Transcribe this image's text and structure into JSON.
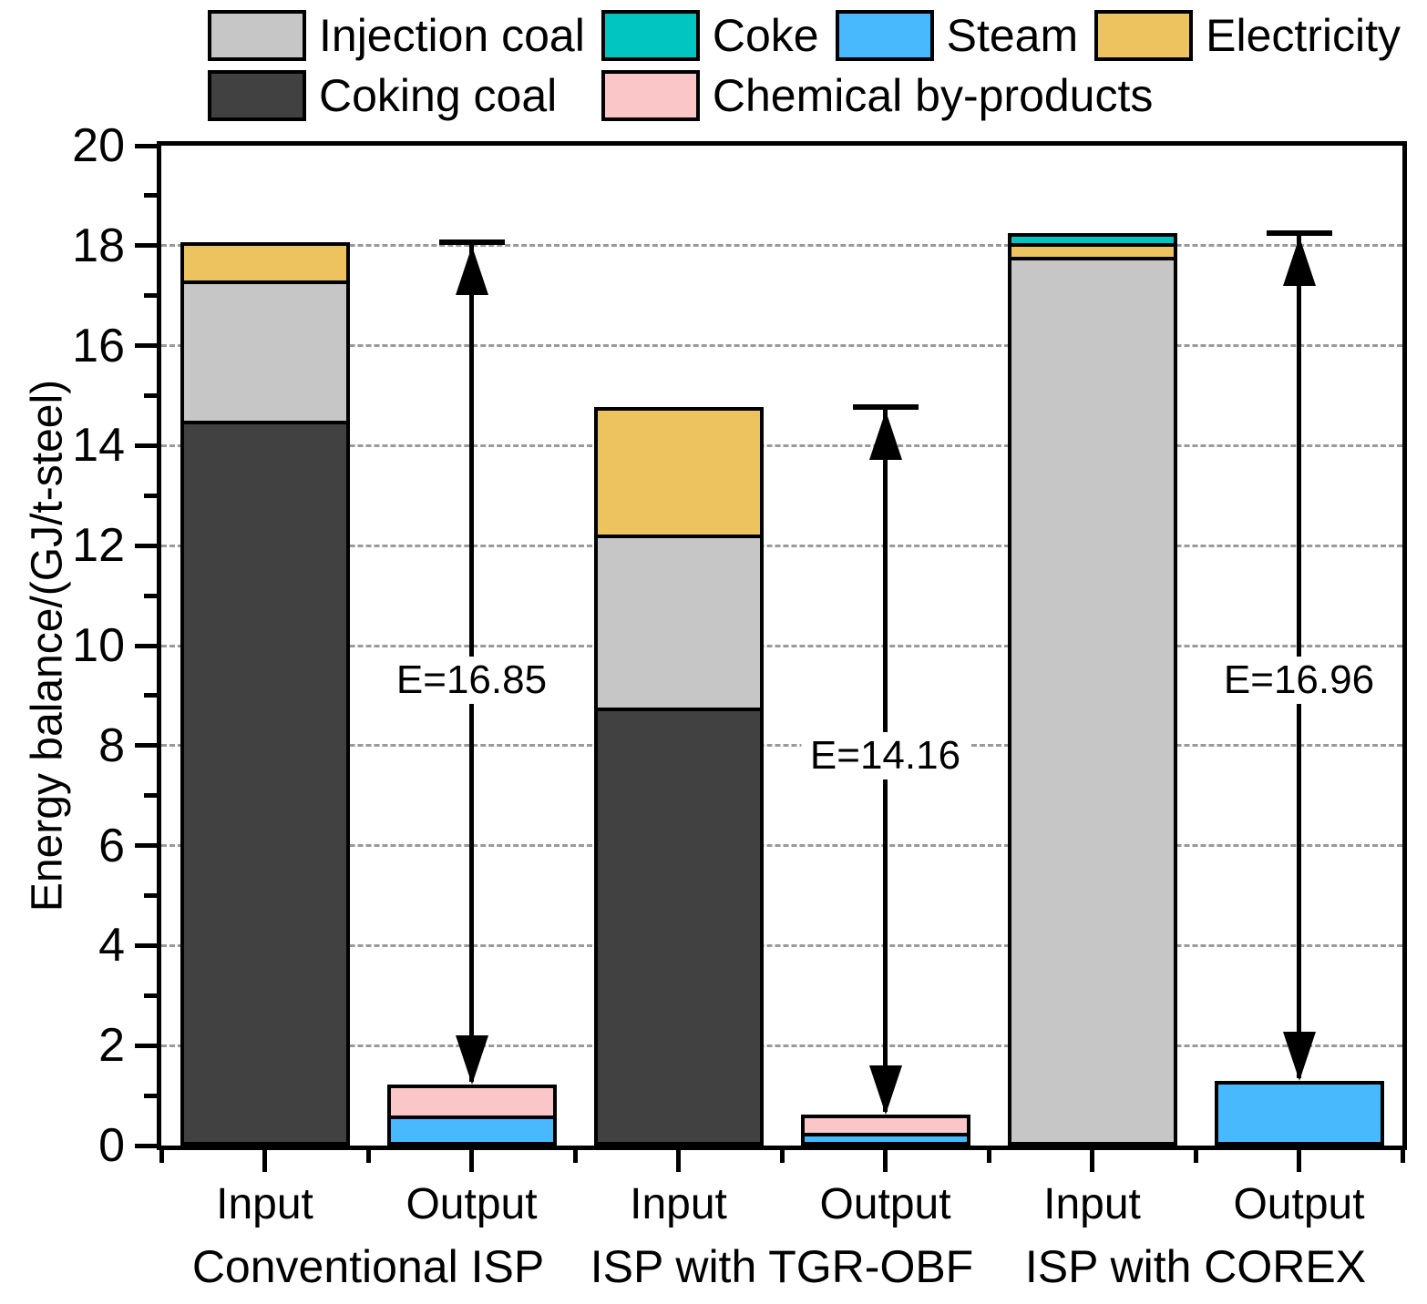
{
  "chart_data": {
    "type": "bar",
    "stacked": true,
    "title": "",
    "xlabel": "",
    "ylabel": "Energy balance/(GJ/t-steel)",
    "ylim": [
      0,
      20
    ],
    "ytick_step": 2,
    "grid": "horizontal dashed at major ticks",
    "legend_position": "top",
    "legend_rows": [
      [
        "Injection coal",
        "Coke",
        "Steam",
        "Electricity"
      ],
      [
        "Coking coal",
        "Chemical by-products"
      ]
    ],
    "series_colors": {
      "Injection coal": "#c6c6c6",
      "Coke": "#00c5c0",
      "Steam": "#47b9fc",
      "Electricity": "#ecc35f",
      "Coking coal": "#414141",
      "Chemical by-products": "#fbc6c8"
    },
    "axis_color": "#000000",
    "groups": [
      {
        "label": "Conventional ISP",
        "bars": [
          {
            "label": "Input",
            "segments": [
              {
                "series": "Coking coal",
                "value": 14.5
              },
              {
                "series": "Injection coal",
                "value": 2.8
              },
              {
                "series": "Electricity",
                "value": 0.77
              }
            ],
            "total": 18.07
          },
          {
            "label": "Output",
            "segments": [
              {
                "series": "Steam",
                "value": 0.61
              },
              {
                "series": "Chemical by-products",
                "value": 0.61
              }
            ],
            "total": 1.22
          }
        ],
        "annotation": {
          "label": "E=16.85",
          "from": 1.22,
          "to": 18.07,
          "label_y": 9.3
        }
      },
      {
        "label": "ISP with TGR-OBF",
        "bars": [
          {
            "label": "Input",
            "segments": [
              {
                "series": "Coking coal",
                "value": 8.76
              },
              {
                "series": "Injection coal",
                "value": 3.46
              },
              {
                "series": "Electricity",
                "value": 2.56
              }
            ],
            "total": 14.78
          },
          {
            "label": "Output",
            "segments": [
              {
                "series": "Steam",
                "value": 0.25
              },
              {
                "series": "Chemical by-products",
                "value": 0.37
              }
            ],
            "total": 0.62
          }
        ],
        "annotation": {
          "label": "E=14.16",
          "from": 0.62,
          "to": 14.78,
          "label_y": 7.8
        }
      },
      {
        "label": "ISP with COREX",
        "bars": [
          {
            "label": "Input",
            "segments": [
              {
                "series": "Injection coal",
                "value": 17.78
              },
              {
                "series": "Electricity",
                "value": 0.27
              },
              {
                "series": "Coke",
                "value": 0.21
              }
            ],
            "total": 18.26
          },
          {
            "label": "Output",
            "segments": [
              {
                "series": "Steam",
                "value": 1.3
              }
            ],
            "total": 1.3
          }
        ],
        "annotation": {
          "label": "E=16.96",
          "from": 1.3,
          "to": 18.26,
          "label_y": 9.3
        }
      }
    ]
  }
}
